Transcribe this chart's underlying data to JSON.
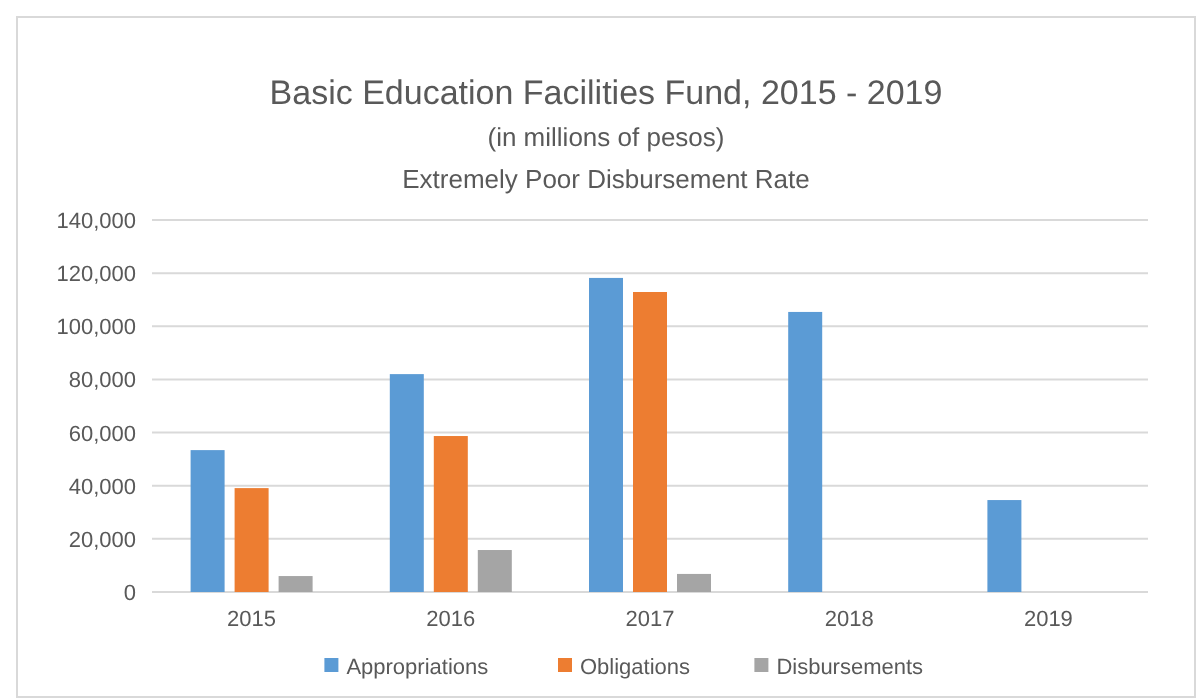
{
  "chart_data": {
    "type": "bar",
    "title": "Basic Education Facilities Fund, 2015 - 2019",
    "subtitle": "(in millions of pesos)\nExtremely Poor Disbursement Rate",
    "categories": [
      "2015",
      "2016",
      "2017",
      "2018",
      "2019"
    ],
    "series": [
      {
        "name": "Appropriations",
        "color": "#5b9bd5",
        "values": [
          53400,
          82000,
          118200,
          105400,
          34600
        ]
      },
      {
        "name": "Obligations",
        "color": "#ed7d31",
        "values": [
          39100,
          58700,
          112900,
          null,
          null
        ]
      },
      {
        "name": "Disbursements",
        "color": "#a5a5a5",
        "values": [
          6000,
          15800,
          6800,
          null,
          null
        ]
      }
    ],
    "ylim": [
      0,
      140000
    ],
    "yticks": [
      {
        "value": 0,
        "label": "0"
      },
      {
        "value": 20000,
        "label": "20,000"
      },
      {
        "value": 40000,
        "label": "40,000"
      },
      {
        "value": 60000,
        "label": "60,000"
      },
      {
        "value": 80000,
        "label": "80,000"
      },
      {
        "value": 100000,
        "label": "100,000"
      },
      {
        "value": 120000,
        "label": "120,000"
      },
      {
        "value": 140000,
        "label": "140,000"
      }
    ],
    "grid": "y",
    "legend": "bottom"
  }
}
